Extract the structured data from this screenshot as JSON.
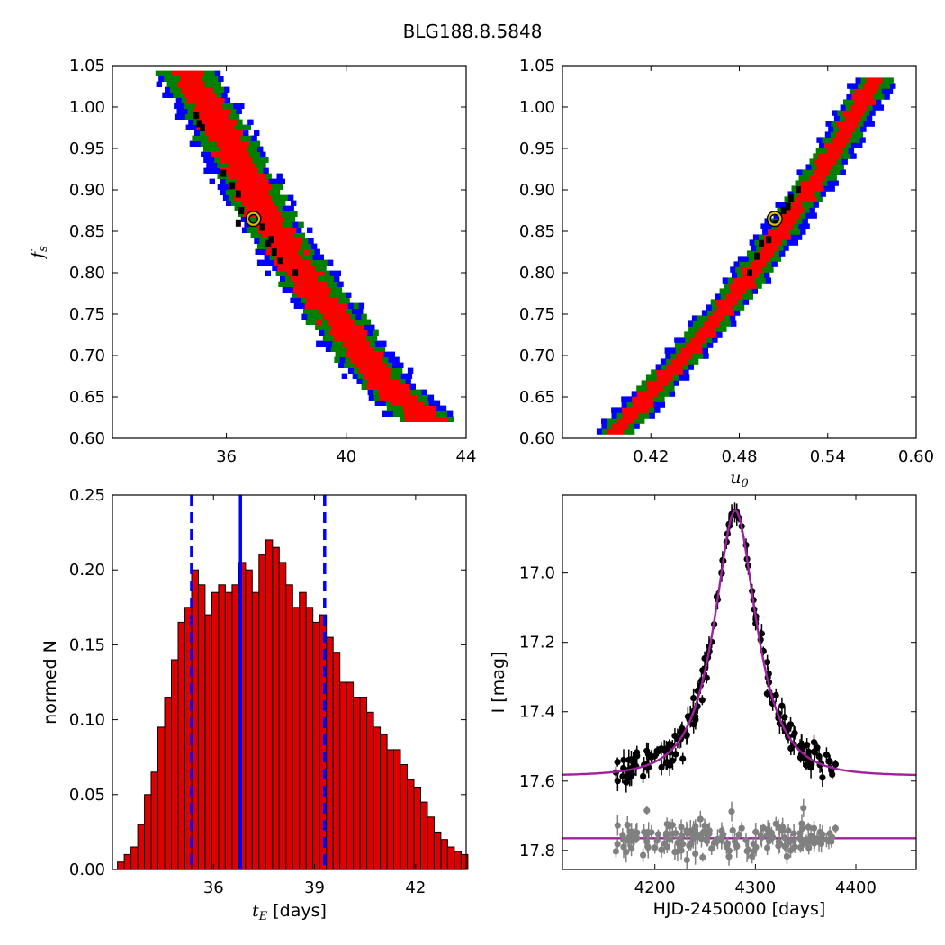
{
  "figure": {
    "title": "BLG188.8.5848"
  },
  "colors": {
    "sigma3": "#0000ff",
    "sigma2": "#008000",
    "sigma1": "#ff0000",
    "samples": "#000000",
    "best": "#d4c000",
    "model": "#a020a0",
    "residual": "#808080",
    "hist_bar": "#dd0000",
    "hist_line": "#0000ff"
  },
  "chart_data": [
    {
      "type": "heatmap",
      "name": "tE-fs",
      "xlabel": "",
      "ylabel": "f_s",
      "xlim": [
        32.2,
        44
      ],
      "ylim": [
        0.6,
        1.05
      ],
      "xticks": [
        36,
        40,
        44
      ],
      "xtick_labels": [
        "36",
        "40",
        "44"
      ],
      "yticks": [
        0.6,
        0.65,
        0.7,
        0.75,
        0.8,
        0.85,
        0.9,
        0.95,
        1.0,
        1.05
      ],
      "ytick_labels": [
        "0.60",
        "0.65",
        "0.70",
        "0.75",
        "0.80",
        "0.85",
        "0.90",
        "0.95",
        "1.00",
        "1.05"
      ],
      "ridge": {
        "x": [
          34.6,
          36.0,
          37.0,
          38.0,
          39.0,
          40.2,
          41.3,
          42.6
        ],
        "y": [
          1.04,
          0.95,
          0.88,
          0.82,
          0.77,
          0.71,
          0.66,
          0.62
        ]
      },
      "half_width": {
        "sigma1": 0.55,
        "sigma2": 0.85,
        "sigma3": 1.05
      },
      "best_fit": {
        "x": 36.9,
        "y": 0.865
      },
      "samples": [
        [
          35.0,
          0.99
        ],
        [
          35.1,
          0.98
        ],
        [
          35.2,
          0.975
        ],
        [
          35.9,
          0.92
        ],
        [
          36.2,
          0.905
        ],
        [
          36.4,
          0.895
        ],
        [
          36.5,
          0.875
        ],
        [
          36.4,
          0.86
        ],
        [
          37.2,
          0.855
        ],
        [
          37.4,
          0.835
        ],
        [
          37.6,
          0.825
        ],
        [
          37.8,
          0.815
        ],
        [
          37.5,
          0.84
        ],
        [
          38.3,
          0.8
        ]
      ]
    },
    {
      "type": "heatmap",
      "name": "u0-fs",
      "xlabel": "u_0",
      "ylabel": "",
      "xlim": [
        0.36,
        0.6
      ],
      "ylim": [
        0.6,
        1.05
      ],
      "xticks": [
        0.42,
        0.48,
        0.54,
        0.6
      ],
      "xtick_labels": [
        "0.42",
        "0.48",
        "0.54",
        "0.60"
      ],
      "yticks": [
        0.6,
        0.65,
        0.7,
        0.75,
        0.8,
        0.85,
        0.9,
        0.95,
        1.0,
        1.05
      ],
      "ytick_labels": [
        "0.60",
        "0.65",
        "0.70",
        "0.75",
        "0.80",
        "0.85",
        "0.90",
        "0.95",
        "1.00",
        "1.05"
      ],
      "ridge": {
        "x": [
          0.394,
          0.42,
          0.45,
          0.48,
          0.51,
          0.54,
          0.57
        ],
        "y": [
          0.605,
          0.655,
          0.715,
          0.78,
          0.855,
          0.935,
          1.03
        ]
      },
      "half_width": {
        "sigma1": 0.006,
        "sigma2": 0.011,
        "sigma3": 0.014
      },
      "best_fit": {
        "x": 0.504,
        "y": 0.865
      },
      "samples": [
        [
          0.487,
          0.8
        ],
        [
          0.492,
          0.82
        ],
        [
          0.5,
          0.84
        ],
        [
          0.505,
          0.86
        ],
        [
          0.51,
          0.875
        ],
        [
          0.513,
          0.88
        ],
        [
          0.515,
          0.89
        ],
        [
          0.52,
          0.9
        ],
        [
          0.495,
          0.835
        ]
      ]
    },
    {
      "type": "bar",
      "name": "tE-histogram",
      "xlabel": "t_E [days]",
      "ylabel": "normed N",
      "xlim": [
        33.0,
        43.5
      ],
      "ylim": [
        0,
        0.25
      ],
      "bin_start": 33.15,
      "bin_width": 0.2,
      "xticks": [
        36,
        39,
        42
      ],
      "xtick_labels": [
        "36",
        "39",
        "42"
      ],
      "yticks": [
        0,
        0.05,
        0.1,
        0.15,
        0.2,
        0.25
      ],
      "ytick_labels": [
        "0.00",
        "0.05",
        "0.10",
        "0.15",
        "0.20",
        "0.25"
      ],
      "values": [
        0.005,
        0.01,
        0.015,
        0.03,
        0.05,
        0.065,
        0.095,
        0.115,
        0.14,
        0.165,
        0.175,
        0.2,
        0.19,
        0.17,
        0.185,
        0.19,
        0.185,
        0.19,
        0.205,
        0.2,
        0.185,
        0.21,
        0.22,
        0.215,
        0.205,
        0.19,
        0.175,
        0.185,
        0.175,
        0.165,
        0.17,
        0.155,
        0.145,
        0.125,
        0.125,
        0.115,
        0.115,
        0.105,
        0.095,
        0.09,
        0.08,
        0.08,
        0.07,
        0.06,
        0.055,
        0.045,
        0.035,
        0.025,
        0.02,
        0.015,
        0.012,
        0.01,
        0.008,
        0.005,
        0.003
      ],
      "median": 36.8,
      "bounds": [
        35.35,
        39.3
      ]
    },
    {
      "type": "line",
      "name": "lightcurve",
      "xlabel": "HJD-2450000 [days]",
      "ylabel": "I [mag]",
      "xlim": [
        4108,
        4460
      ],
      "ylim": [
        17.855,
        16.775
      ],
      "xticks": [
        4200,
        4300,
        4400
      ],
      "xtick_labels": [
        "4200",
        "4300",
        "4400"
      ],
      "yticks": [
        17.0,
        17.2,
        17.4,
        17.6,
        17.8
      ],
      "ytick_labels": [
        "17.0",
        "17.2",
        "17.4",
        "17.6",
        "17.8"
      ],
      "model": {
        "t0": 4280,
        "tE": 36.8,
        "u0": 0.5,
        "fs": 0.865,
        "baseline": 17.585,
        "residual_offset": 17.765
      },
      "observations": {
        "t_start": 4160,
        "t_end": 4380,
        "count": 170,
        "scatter": 0.025,
        "residual_scatter": 0.025
      }
    }
  ]
}
